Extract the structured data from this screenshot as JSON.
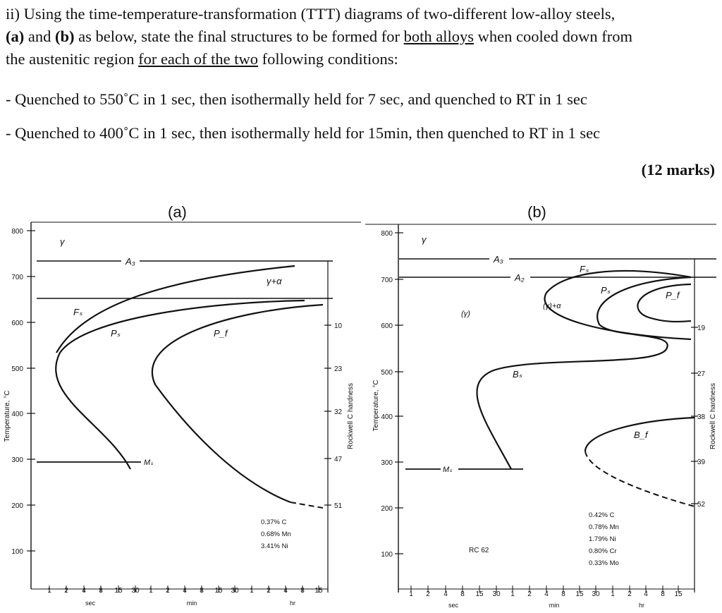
{
  "question": {
    "line1": "ii) Using the time-temperature-transformation (TTT) diagrams of two-different low-alloy steels,",
    "line2_a": "(a)",
    "line2_and": " and ",
    "line2_b": "(b)",
    "line2_mid": " as below, state the final structures to be formed for ",
    "line2_u": "both alloys",
    "line2_end": " when cooled down from",
    "line3_start": "the austenitic region ",
    "line3_u": "for each of the two",
    "line3_end": " following conditions:",
    "cond1": "- Quenched to 550˚C in 1 sec, then isothermally held for 7 sec, and quenched to RT in 1 sec",
    "cond2": "- Quenched to 400˚C in 1 sec, then isothermally held for 15min, then quenched to RT in 1 sec",
    "marks": "(12 marks)"
  },
  "diagram_a": {
    "label": "(a)",
    "y_ticks": [
      "800",
      "700",
      "600",
      "500",
      "400",
      "300",
      "200",
      "100"
    ],
    "x_ticks": [
      "1",
      "2",
      "4",
      "8",
      "15",
      "30",
      "1",
      "2",
      "4",
      "8",
      "15",
      "30",
      "1",
      "2",
      "4",
      "8",
      "15"
    ],
    "x_units": [
      "sec",
      "min",
      "hr"
    ],
    "y_axis_label": "Temperature, °C",
    "right_axis_label": "Rockwell C hardness",
    "hardness_ticks": [
      "10",
      "23",
      "32",
      "47",
      "51"
    ],
    "annotations": {
      "gamma": "γ",
      "a3": "A₃",
      "gamma_alpha": "γ+α",
      "fs": "Fₛ",
      "ps": "Pₛ",
      "pf": "P_f",
      "ms": "Mₛ"
    },
    "composition": [
      "0.37% C",
      "0.68% Mn",
      "3.41% Ni"
    ]
  },
  "diagram_b": {
    "label": "(b)",
    "y_ticks": [
      "800",
      "700",
      "600",
      "500",
      "400",
      "300",
      "200",
      "100"
    ],
    "x_ticks": [
      "1",
      "2",
      "4",
      "8",
      "15",
      "30",
      "1",
      "2",
      "4",
      "8",
      "15",
      "30",
      "1",
      "2",
      "4",
      "8",
      "15"
    ],
    "x_units": [
      "sec",
      "min",
      "hr"
    ],
    "y_axis_label": "Temperature, °C",
    "right_axis_label": "Rockwell C hardness",
    "hardness_ticks": [
      "19",
      "27",
      "38",
      "39",
      "52"
    ],
    "annotations": {
      "gamma": "γ",
      "a3": "A₃",
      "a2": "A₂",
      "fs": "Fₛ",
      "ps": "Pₛ",
      "pf": "P_f",
      "gamma_alpha": "(γ)+α",
      "gamma_paren": "(γ)",
      "bs": "Bₛ",
      "bf": "B_f",
      "ms": "Mₛ",
      "rc": "RC 62"
    },
    "composition": [
      "0.42% C",
      "0.78% Mn",
      "1.79% Ni",
      "0.80% Cr",
      "0.33% Mo"
    ]
  }
}
